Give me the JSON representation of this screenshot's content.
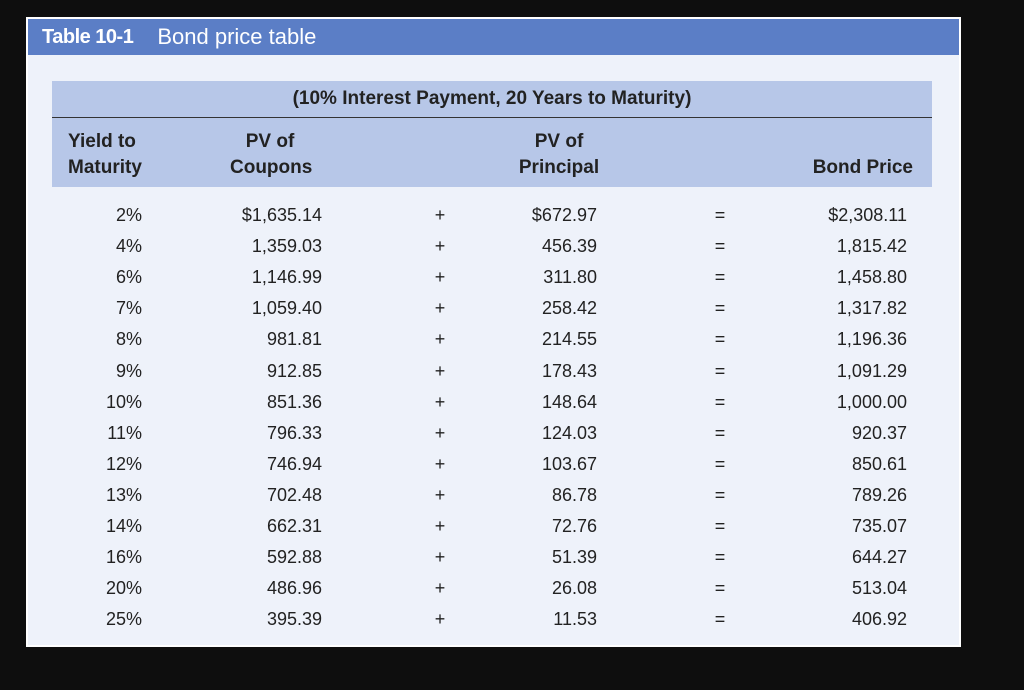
{
  "header": {
    "label": "Table 10-1",
    "title": "Bond price table"
  },
  "table": {
    "caption": "(10% Interest Payment, 20 Years to Maturity)",
    "columns": {
      "yield": [
        "Yield to",
        "Maturity"
      ],
      "coupons": [
        "PV of",
        "Coupons"
      ],
      "principal": [
        "PV of",
        "Principal"
      ],
      "price": [
        "Bond Price"
      ]
    },
    "plus_sign": "+",
    "equals_sign": "=",
    "rows": [
      {
        "yield": "2%",
        "coupons": "$1,635.14",
        "principal": "$672.97",
        "price": "$2,308.11"
      },
      {
        "yield": "4%",
        "coupons": "1,359.03",
        "principal": "456.39",
        "price": "1,815.42"
      },
      {
        "yield": "6%",
        "coupons": "1,146.99",
        "principal": "311.80",
        "price": "1,458.80"
      },
      {
        "yield": "7%",
        "coupons": "1,059.40",
        "principal": "258.42",
        "price": "1,317.82"
      },
      {
        "yield": "8%",
        "coupons": "981.81",
        "principal": "214.55",
        "price": "1,196.36"
      },
      {
        "yield": "9%",
        "coupons": "912.85",
        "principal": "178.43",
        "price": "1,091.29"
      },
      {
        "yield": "10%",
        "coupons": "851.36",
        "principal": "148.64",
        "price": "1,000.00"
      },
      {
        "yield": "11%",
        "coupons": "796.33",
        "principal": "124.03",
        "price": "920.37"
      },
      {
        "yield": "12%",
        "coupons": "746.94",
        "principal": "103.67",
        "price": "850.61"
      },
      {
        "yield": "13%",
        "coupons": "702.48",
        "principal": "86.78",
        "price": "789.26"
      },
      {
        "yield": "14%",
        "coupons": "662.31",
        "principal": "72.76",
        "price": "735.07"
      },
      {
        "yield": "16%",
        "coupons": "592.88",
        "principal": "51.39",
        "price": "644.27"
      },
      {
        "yield": "20%",
        "coupons": "486.96",
        "principal": "26.08",
        "price": "513.04"
      },
      {
        "yield": "25%",
        "coupons": "395.39",
        "principal": "11.53",
        "price": "406.92"
      }
    ]
  }
}
